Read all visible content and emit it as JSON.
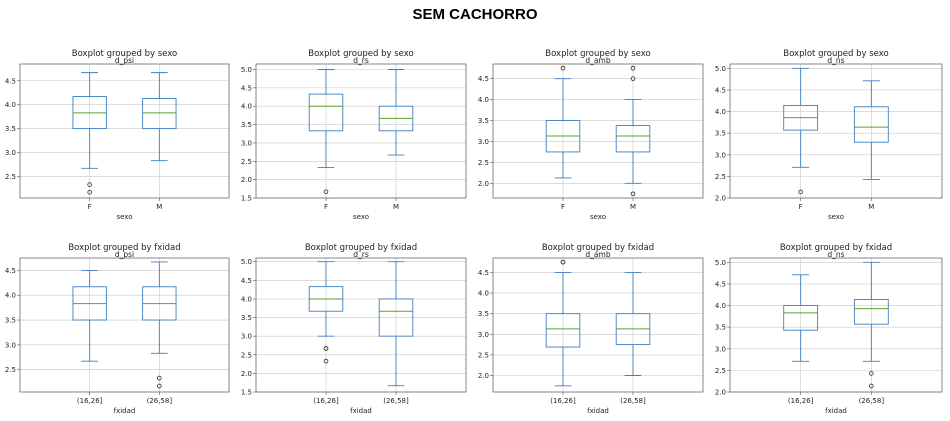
{
  "page_title": "SEM CACHORRO",
  "chart_data": [
    {
      "type": "boxplot",
      "title": "Boxplot grouped by sexo",
      "subtitle": "d_psi",
      "xlabel": "sexo",
      "ylim": [
        2.05,
        4.85
      ],
      "yticks": [
        2.5,
        3.0,
        3.5,
        4.0,
        4.5
      ],
      "ytick_labels": [
        "2.5",
        "3.0",
        "3.5",
        "4.0",
        "4.5"
      ],
      "grid": true,
      "categories": [
        "F",
        "M"
      ],
      "boxes": [
        {
          "whislo": 2.67,
          "q1": 3.5,
          "med": 3.83,
          "q3": 4.17,
          "whishi": 4.67,
          "fliers": [
            2.33,
            2.17
          ]
        },
        {
          "whislo": 2.83,
          "q1": 3.5,
          "med": 3.83,
          "q3": 4.13,
          "whishi": 4.67,
          "fliers": []
        }
      ]
    },
    {
      "type": "boxplot",
      "title": "Boxplot grouped by sexo",
      "subtitle": "d_rs",
      "xlabel": "sexo",
      "ylim": [
        1.5,
        5.15
      ],
      "yticks": [
        1.5,
        2.0,
        2.5,
        3.0,
        3.5,
        4.0,
        4.5,
        5.0
      ],
      "ytick_labels": [
        "1.5",
        "2.0",
        "2.5",
        "3.0",
        "3.5",
        "4.0",
        "4.5",
        "5.0"
      ],
      "grid": true,
      "categories": [
        "F",
        "M"
      ],
      "boxes": [
        {
          "whislo": 2.33,
          "q1": 3.33,
          "med": 4.0,
          "q3": 4.33,
          "whishi": 5.0,
          "fliers": [
            1.67
          ]
        },
        {
          "whislo": 2.67,
          "q1": 3.33,
          "med": 3.67,
          "q3": 4.0,
          "whishi": 5.0,
          "fliers": []
        }
      ]
    },
    {
      "type": "boxplot",
      "title": "Boxplot grouped by sexo",
      "subtitle": "d_amb",
      "xlabel": "sexo",
      "ylim": [
        1.65,
        4.85
      ],
      "yticks": [
        2.0,
        2.5,
        3.0,
        3.5,
        4.0,
        4.5
      ],
      "ytick_labels": [
        "2.0",
        "2.5",
        "3.0",
        "3.5",
        "4.0",
        "4.5"
      ],
      "grid": true,
      "categories": [
        "F",
        "M"
      ],
      "boxes": [
        {
          "whislo": 2.13,
          "q1": 2.75,
          "med": 3.13,
          "q3": 3.5,
          "whishi": 4.5,
          "fliers": [
            4.75
          ]
        },
        {
          "whislo": 2.0,
          "q1": 2.75,
          "med": 3.13,
          "q3": 3.38,
          "whishi": 4.0,
          "fliers": [
            4.75,
            4.5,
            1.75
          ]
        }
      ]
    },
    {
      "type": "boxplot",
      "title": "Boxplot grouped by sexo",
      "subtitle": "d_ns",
      "xlabel": "sexo",
      "ylim": [
        2.0,
        5.1
      ],
      "yticks": [
        2.0,
        2.5,
        3.0,
        3.5,
        4.0,
        4.5,
        5.0
      ],
      "ytick_labels": [
        "2.0",
        "2.5",
        "3.0",
        "3.5",
        "4.0",
        "4.5",
        "5.0"
      ],
      "grid": true,
      "categories": [
        "F",
        "M"
      ],
      "boxes": [
        {
          "whislo": 2.71,
          "q1": 3.57,
          "med": 3.86,
          "q3": 4.14,
          "whishi": 5.0,
          "fliers": [
            2.14
          ]
        },
        {
          "whislo": 2.43,
          "q1": 3.29,
          "med": 3.64,
          "q3": 4.11,
          "whishi": 4.71,
          "fliers": []
        }
      ]
    },
    {
      "type": "boxplot",
      "title": "Boxplot grouped by fxidad",
      "subtitle": "d_psi",
      "xlabel": "fxidad",
      "ylim": [
        2.05,
        4.75
      ],
      "yticks": [
        2.5,
        3.0,
        3.5,
        4.0,
        4.5
      ],
      "ytick_labels": [
        "2.5",
        "3.0",
        "3.5",
        "4.0",
        "4.5"
      ],
      "grid": true,
      "categories": [
        "(16,26]",
        "(26,58]"
      ],
      "boxes": [
        {
          "whislo": 2.67,
          "q1": 3.5,
          "med": 3.83,
          "q3": 4.17,
          "whishi": 4.5,
          "fliers": []
        },
        {
          "whislo": 2.83,
          "q1": 3.5,
          "med": 3.83,
          "q3": 4.17,
          "whishi": 4.67,
          "fliers": [
            2.33,
            2.17
          ]
        }
      ]
    },
    {
      "type": "boxplot",
      "title": "Boxplot grouped by fxidad",
      "subtitle": "d_rs",
      "xlabel": "fxidad",
      "ylim": [
        1.5,
        5.1
      ],
      "yticks": [
        1.5,
        2.0,
        2.5,
        3.0,
        3.5,
        4.0,
        4.5,
        5.0
      ],
      "ytick_labels": [
        "1.5",
        "2.0",
        "2.5",
        "3.0",
        "3.5",
        "4.0",
        "4.5",
        "5.0"
      ],
      "grid": true,
      "categories": [
        "(16,26]",
        "(26,58]"
      ],
      "boxes": [
        {
          "whislo": 3.0,
          "q1": 3.67,
          "med": 4.0,
          "q3": 4.33,
          "whishi": 5.0,
          "fliers": [
            2.67,
            2.67,
            2.33
          ]
        },
        {
          "whislo": 1.67,
          "q1": 3.0,
          "med": 3.67,
          "q3": 4.0,
          "whishi": 5.0,
          "fliers": []
        }
      ]
    },
    {
      "type": "boxplot",
      "title": "Boxplot grouped by fxidad",
      "subtitle": "d_amb",
      "xlabel": "fxidad",
      "ylim": [
        1.6,
        4.85
      ],
      "yticks": [
        2.0,
        2.5,
        3.0,
        3.5,
        4.0,
        4.5
      ],
      "ytick_labels": [
        "2.0",
        "2.5",
        "3.0",
        "3.5",
        "4.0",
        "4.5"
      ],
      "grid": true,
      "categories": [
        "(16,26]",
        "(26,58]"
      ],
      "boxes": [
        {
          "whislo": 1.75,
          "q1": 2.69,
          "med": 3.13,
          "q3": 3.5,
          "whishi": 4.5,
          "fliers": [
            4.75,
            4.75
          ]
        },
        {
          "whislo": 2.0,
          "q1": 2.75,
          "med": 3.13,
          "q3": 3.5,
          "whishi": 4.5,
          "fliers": []
        }
      ]
    },
    {
      "type": "boxplot",
      "title": "Boxplot grouped by fxidad",
      "subtitle": "d_ns",
      "xlabel": "fxidad",
      "ylim": [
        2.0,
        5.1
      ],
      "yticks": [
        2.0,
        2.5,
        3.0,
        3.5,
        4.0,
        4.5,
        5.0
      ],
      "ytick_labels": [
        "2.0",
        "2.5",
        "3.0",
        "3.5",
        "4.0",
        "4.5",
        "5.0"
      ],
      "grid": true,
      "categories": [
        "(16,26]",
        "(26,58]"
      ],
      "boxes": [
        {
          "whislo": 2.71,
          "q1": 3.43,
          "med": 3.83,
          "q3": 4.0,
          "whishi": 4.71,
          "fliers": []
        },
        {
          "whislo": 2.71,
          "q1": 3.57,
          "med": 3.93,
          "q3": 4.14,
          "whishi": 5.0,
          "fliers": [
            2.43,
            2.14
          ]
        }
      ]
    }
  ],
  "colors": {
    "box": "#3d7fbf",
    "median": "#5aa02c",
    "grid": "#c8c8c8",
    "axis": "#555555",
    "text": "#222222"
  }
}
